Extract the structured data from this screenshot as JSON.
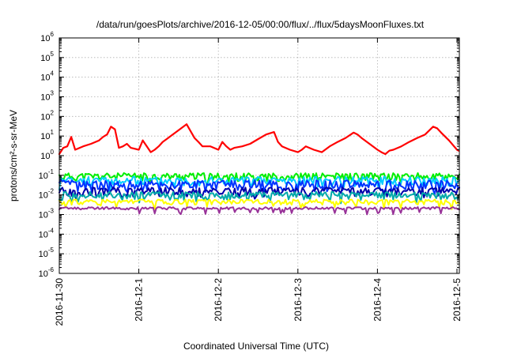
{
  "chart_data": {
    "type": "line",
    "title": "/data/run/goesPlots/archive/2016-12-05/00:00/flux/../flux/5daysMoonFluxes.txt",
    "xlabel": "Coordinated Universal Time (UTC)",
    "ylabel": "protons/cm²-s-sr-MeV",
    "yscale": "log",
    "ylim": [
      1e-06,
      1000000.0
    ],
    "xlim": [
      0,
      5.03
    ],
    "x_unit": "days since 2016-11-30 00:00 UTC",
    "x_ticks": [
      {
        "x": 0,
        "label": "2016-11-30"
      },
      {
        "x": 1,
        "label": "2016-12-1"
      },
      {
        "x": 2,
        "label": "2016-12-2"
      },
      {
        "x": 3,
        "label": "2016-12-3"
      },
      {
        "x": 4,
        "label": "2016-12-4"
      },
      {
        "x": 5,
        "label": "2016-12-5"
      }
    ],
    "y_ticks": [
      {
        "exp": -6,
        "label": "10-6"
      },
      {
        "exp": -5,
        "label": "10-5"
      },
      {
        "exp": -4,
        "label": "10-4"
      },
      {
        "exp": -3,
        "label": "10-3"
      },
      {
        "exp": -2,
        "label": "10-2"
      },
      {
        "exp": -1,
        "label": "10-1"
      },
      {
        "exp": 0,
        "label": "100"
      },
      {
        "exp": 1,
        "label": "101"
      },
      {
        "exp": 2,
        "label": "102"
      },
      {
        "exp": 3,
        "label": "103"
      },
      {
        "exp": 4,
        "label": "104"
      },
      {
        "exp": 5,
        "label": "105"
      },
      {
        "exp": 6,
        "label": "106"
      }
    ],
    "grid": true,
    "legend": "none",
    "series": [
      {
        "color": "#ff0000",
        "x": [
          0,
          0.05,
          0.1,
          0.15,
          0.2,
          0.3,
          0.4,
          0.5,
          0.55,
          0.6,
          0.65,
          0.7,
          0.75,
          0.8,
          0.85,
          0.9,
          1.0,
          1.05,
          1.1,
          1.15,
          1.2,
          1.25,
          1.3,
          1.35,
          1.4,
          1.5,
          1.6,
          1.7,
          1.75,
          1.8,
          1.9,
          2.0,
          2.05,
          2.1,
          2.15,
          2.2,
          2.3,
          2.4,
          2.5,
          2.6,
          2.7,
          2.75,
          2.8,
          2.9,
          3.0,
          3.05,
          3.1,
          3.2,
          3.3,
          3.4,
          3.5,
          3.6,
          3.7,
          3.75,
          3.8,
          3.9,
          4.0,
          4.05,
          4.1,
          4.15,
          4.2,
          4.3,
          4.4,
          4.5,
          4.6,
          4.7,
          4.75,
          4.8,
          4.9,
          5.0,
          5.02
        ],
        "values": [
          1.2,
          2.5,
          3.0,
          9.0,
          2.0,
          3.0,
          4.0,
          6.0,
          9.0,
          12.0,
          30.0,
          22.0,
          2.5,
          3.0,
          4.0,
          2.5,
          2.0,
          6.0,
          3.0,
          1.5,
          2.0,
          3.0,
          5.0,
          7.0,
          10.0,
          20.0,
          40.0,
          8.0,
          5.0,
          3.0,
          3.0,
          2.0,
          5.0,
          3.0,
          2.0,
          2.5,
          3.0,
          4.0,
          7.0,
          12.0,
          16.0,
          5.0,
          3.0,
          2.0,
          1.5,
          2.0,
          3.0,
          2.0,
          1.5,
          3.0,
          5.0,
          8.0,
          15.0,
          12.0,
          8.0,
          4.0,
          2.0,
          1.5,
          1.2,
          1.8,
          2.0,
          3.0,
          5.0,
          8.0,
          12.0,
          30.0,
          25.0,
          15.0,
          6.0,
          2.0,
          1.8
        ]
      },
      {
        "color": "#00ee00",
        "base": 0.09,
        "amp": 1.45,
        "seed": 11
      },
      {
        "color": "#00ccff",
        "base": 0.055,
        "amp": 1.55,
        "seed": 23
      },
      {
        "color": "#0033ff",
        "base": 0.035,
        "amp": 1.6,
        "seed": 37
      },
      {
        "color": "#0000aa",
        "base": 0.016,
        "amp": 1.5,
        "seed": 53
      },
      {
        "color": "#00aaaa",
        "base": 0.01,
        "amp": 1.45,
        "seed": 71
      },
      {
        "color": "#ffff00",
        "base": 0.0045,
        "amp": 1.3,
        "seed": 89
      },
      {
        "color": "#993399",
        "base": 0.0021,
        "amp": 1.15,
        "seed": 97
      }
    ]
  }
}
